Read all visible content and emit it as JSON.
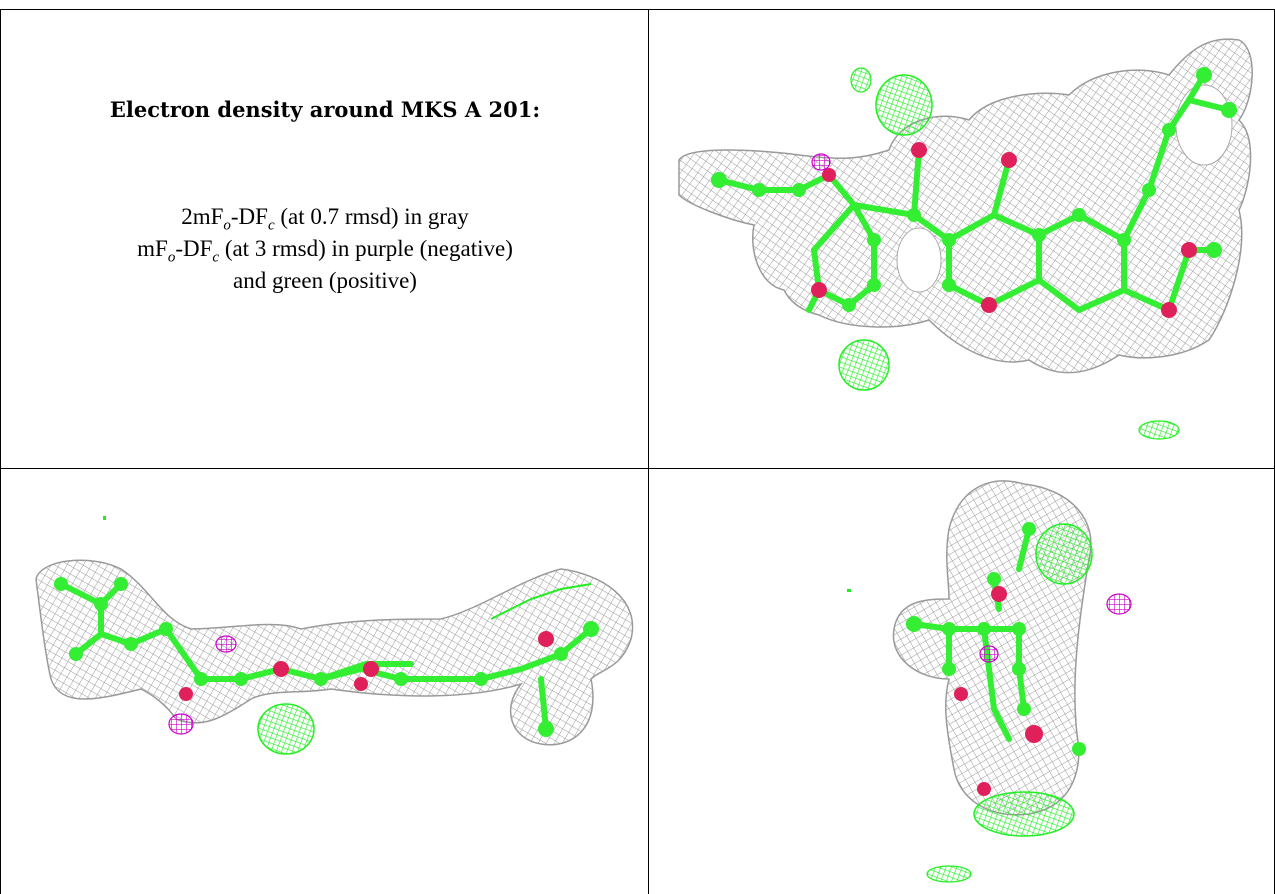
{
  "caption": {
    "title": "Electron density around MKS A 201:",
    "line1_lead": "2mF",
    "line1_sub_o": "o",
    "line1_mid": "-DF",
    "line1_sub_c": "c",
    "line1_tail": " (at 0.7 rmsd) in gray",
    "line2_lead": "mF",
    "line2_sub_o": "o",
    "line2_mid": "-DF",
    "line2_sub_c": "c",
    "line2_tail": " (at 3 rmsd) in purple (negative)",
    "line3": "and green (positive)"
  },
  "colors": {
    "mesh_gray": "#9a9a9a",
    "carbon_green": "#33ee33",
    "oxygen_red": "#e0205a",
    "negative_purple": "#cc00cc",
    "positive_green": "#22ee22"
  },
  "panels": [
    {
      "name": "top-right-view",
      "content": "electron-density-mesh-structure"
    },
    {
      "name": "bottom-left-view",
      "content": "electron-density-mesh-structure"
    },
    {
      "name": "bottom-right-view",
      "content": "electron-density-mesh-structure"
    }
  ]
}
